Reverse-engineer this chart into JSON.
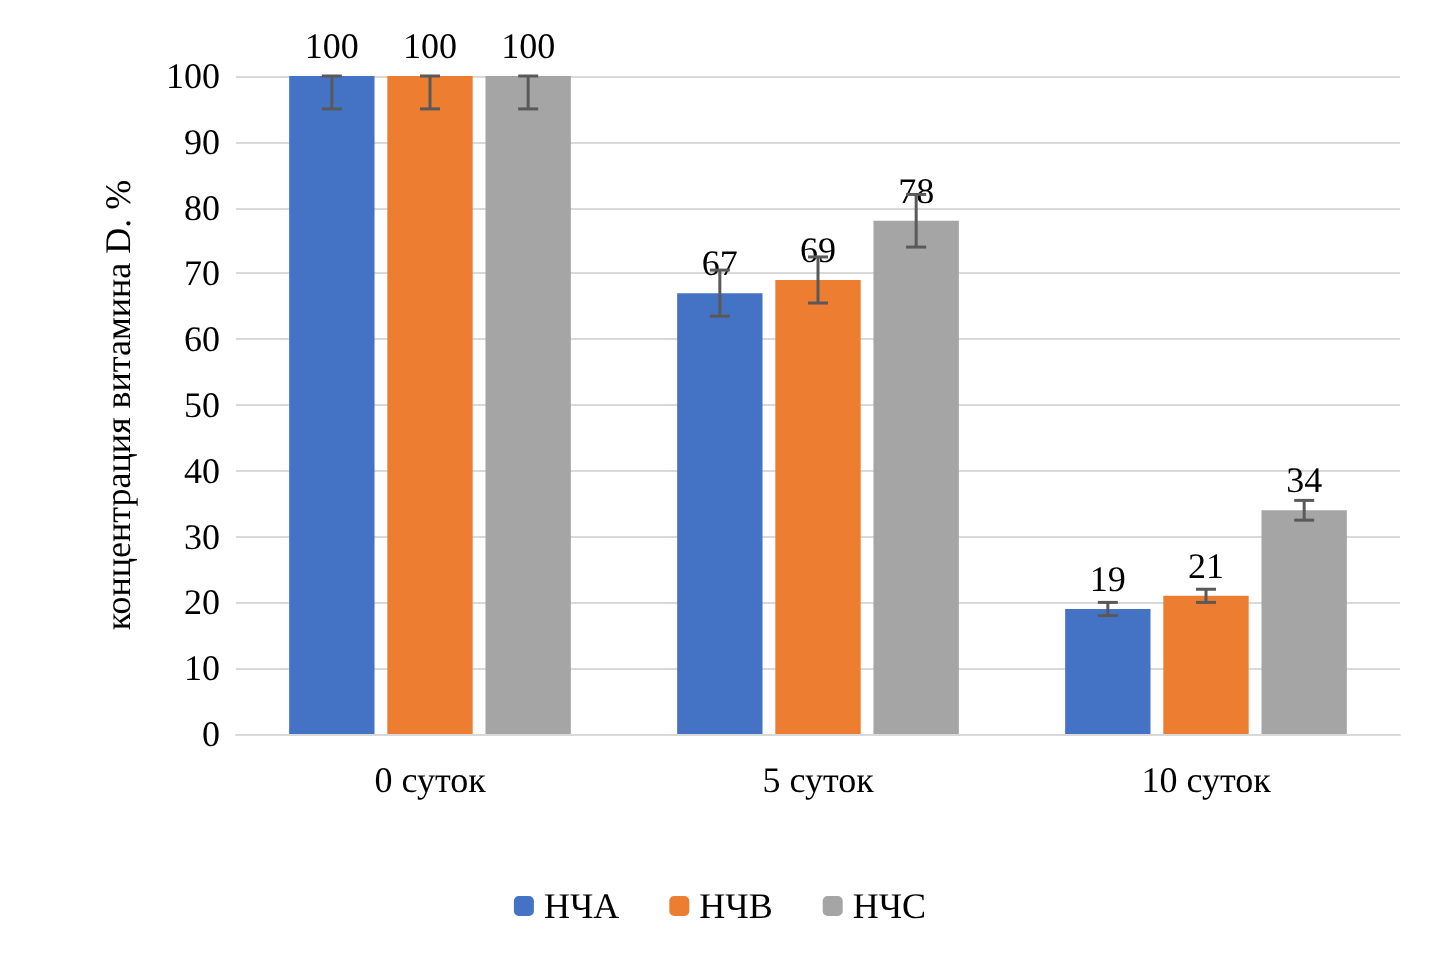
{
  "chart_data": {
    "type": "bar",
    "ylabel": "концентрация витамина D. %",
    "categories": [
      "0 суток",
      "5 суток",
      "10 суток"
    ],
    "series": [
      {
        "name": "НЧА",
        "color": "#4472c4",
        "values": [
          100,
          67,
          19
        ],
        "errors": [
          [
            95,
            100
          ],
          3.5,
          1
        ]
      },
      {
        "name": "НЧВ",
        "color": "#ed7d31",
        "values": [
          100,
          69,
          21
        ],
        "errors": [
          [
            95,
            100
          ],
          3.5,
          1
        ]
      },
      {
        "name": "НЧС",
        "color": "#a5a5a5",
        "values": [
          100,
          78,
          34
        ],
        "errors": [
          [
            95,
            100
          ],
          4,
          1.5
        ]
      }
    ],
    "ylim": [
      0,
      100
    ],
    "yticks": [
      0,
      10,
      20,
      30,
      40,
      50,
      60,
      70,
      80,
      90,
      100
    ],
    "grid": "y",
    "legend": "bottom",
    "data_labels": true
  }
}
